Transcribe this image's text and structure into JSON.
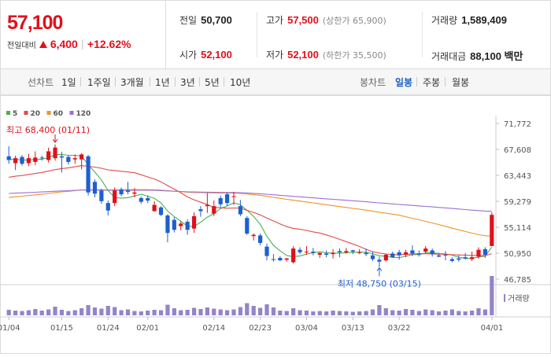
{
  "quote": {
    "price": "57,100",
    "change_label": "전일대비",
    "change": "6,400",
    "change_pct": "+12.62%",
    "prev_close_label": "전일",
    "prev_close": "50,700",
    "high_label": "고가",
    "high": "57,500",
    "upper_limit": "(상한가 65,900)",
    "volume_label": "거래량",
    "volume": "1,589,409",
    "open_label": "시가",
    "open": "52,100",
    "low_label": "저가",
    "low": "52,100",
    "lower_limit": "(하한가 35,500)",
    "amount_label": "거래대금",
    "amount": "88,100 백만"
  },
  "toolbar": {
    "line_label": "선차트",
    "periods": [
      "1일",
      "1주일",
      "3개월",
      "1년",
      "3년",
      "5년",
      "10년"
    ],
    "candle_label": "봉차트",
    "candles": [
      "일봉",
      "주봉",
      "월봉"
    ],
    "active_candle": "일봉"
  },
  "colors": {
    "up": "#e0101c",
    "down": "#1e5fd0",
    "ma5": "#4caf50",
    "ma20": "#e24a4a",
    "ma60": "#f0922b",
    "ma120": "#9a6fd6",
    "volume": "#9484c8"
  },
  "chart_data": {
    "type": "candlestick",
    "legend": [
      {
        "name": "5",
        "color": "#4caf50"
      },
      {
        "name": "20",
        "color": "#e24a4a"
      },
      {
        "name": "60",
        "color": "#f0922b"
      },
      {
        "name": "120",
        "color": "#9a6fd6"
      }
    ],
    "y_ticks": [
      "71,772",
      "67,608",
      "63,443",
      "59,279",
      "55,114",
      "50,950",
      "46,785"
    ],
    "ylim": [
      46785,
      71772
    ],
    "x_ticks": [
      "01/04",
      "01/15",
      "01/24",
      "02/01",
      "02/14",
      "02/23",
      "03/04",
      "03/13",
      "03/22",
      "04/01"
    ],
    "high_annotation": "최고 68,400 (01/11)",
    "low_annotation": "최저 48,750 (03/15)",
    "volume_label": "거래량",
    "candles": [
      {
        "o": 66500,
        "h": 68100,
        "l": 65300,
        "c": 65900
      },
      {
        "o": 65400,
        "h": 66600,
        "l": 64300,
        "c": 66200
      },
      {
        "o": 66400,
        "h": 66700,
        "l": 65000,
        "c": 65300
      },
      {
        "o": 65400,
        "h": 66900,
        "l": 64900,
        "c": 66200
      },
      {
        "o": 65600,
        "h": 67300,
        "l": 65100,
        "c": 66300
      },
      {
        "o": 66300,
        "h": 66600,
        "l": 65800,
        "c": 66200
      },
      {
        "o": 65900,
        "h": 67900,
        "l": 65500,
        "c": 67300
      },
      {
        "o": 66200,
        "h": 68400,
        "l": 65800,
        "c": 67900
      },
      {
        "o": 66500,
        "h": 67200,
        "l": 63900,
        "c": 66300
      },
      {
        "o": 66400,
        "h": 66700,
        "l": 65200,
        "c": 65600
      },
      {
        "o": 66000,
        "h": 66800,
        "l": 65300,
        "c": 66200
      },
      {
        "o": 66000,
        "h": 67000,
        "l": 64400,
        "c": 66800
      },
      {
        "o": 66500,
        "h": 66700,
        "l": 60200,
        "c": 60700
      },
      {
        "o": 62400,
        "h": 62800,
        "l": 59900,
        "c": 60500
      },
      {
        "o": 61000,
        "h": 61300,
        "l": 58900,
        "c": 59300
      },
      {
        "o": 59000,
        "h": 59400,
        "l": 57000,
        "c": 57800
      },
      {
        "o": 59000,
        "h": 61500,
        "l": 58500,
        "c": 61000
      },
      {
        "o": 61200,
        "h": 61500,
        "l": 60100,
        "c": 60400
      },
      {
        "o": 61000,
        "h": 62400,
        "l": 60400,
        "c": 60800
      },
      {
        "o": 60500,
        "h": 61400,
        "l": 59900,
        "c": 60700
      },
      {
        "o": 59800,
        "h": 60000,
        "l": 58900,
        "c": 59200
      },
      {
        "o": 59800,
        "h": 60200,
        "l": 59000,
        "c": 59400
      },
      {
        "o": 57700,
        "h": 59300,
        "l": 57600,
        "c": 58700
      },
      {
        "o": 58300,
        "h": 58500,
        "l": 56900,
        "c": 57100
      },
      {
        "o": 57000,
        "h": 57200,
        "l": 52700,
        "c": 54200
      },
      {
        "o": 56300,
        "h": 56700,
        "l": 54300,
        "c": 54700
      },
      {
        "o": 55300,
        "h": 56100,
        "l": 54600,
        "c": 55700
      },
      {
        "o": 56000,
        "h": 56400,
        "l": 53900,
        "c": 54700
      },
      {
        "o": 54900,
        "h": 57500,
        "l": 54200,
        "c": 56900
      },
      {
        "o": 58000,
        "h": 58500,
        "l": 56800,
        "c": 57700
      },
      {
        "o": 58500,
        "h": 60600,
        "l": 57400,
        "c": 58700
      },
      {
        "o": 57300,
        "h": 59400,
        "l": 56900,
        "c": 58500
      },
      {
        "o": 59800,
        "h": 60200,
        "l": 58300,
        "c": 58800
      },
      {
        "o": 60400,
        "h": 60700,
        "l": 58500,
        "c": 59000
      },
      {
        "o": 60100,
        "h": 60800,
        "l": 58700,
        "c": 60100
      },
      {
        "o": 58500,
        "h": 59500,
        "l": 56900,
        "c": 57200
      },
      {
        "o": 56600,
        "h": 56900,
        "l": 53900,
        "c": 54100
      },
      {
        "o": 53700,
        "h": 54100,
        "l": 53000,
        "c": 53900
      },
      {
        "o": 53800,
        "h": 54100,
        "l": 52200,
        "c": 52600
      },
      {
        "o": 52000,
        "h": 52500,
        "l": 49800,
        "c": 50500
      },
      {
        "o": 50000,
        "h": 50800,
        "l": 49600,
        "c": 49900
      },
      {
        "o": 50200,
        "h": 50500,
        "l": 49700,
        "c": 49800
      },
      {
        "o": 49900,
        "h": 50200,
        "l": 49600,
        "c": 50100
      },
      {
        "o": 49500,
        "h": 52100,
        "l": 49300,
        "c": 51700
      },
      {
        "o": 51500,
        "h": 51900,
        "l": 50800,
        "c": 51100
      },
      {
        "o": 51100,
        "h": 52100,
        "l": 50700,
        "c": 51200
      },
      {
        "o": 51200,
        "h": 51800,
        "l": 50600,
        "c": 51000
      },
      {
        "o": 50700,
        "h": 51100,
        "l": 50200,
        "c": 51000
      },
      {
        "o": 50900,
        "h": 51400,
        "l": 50300,
        "c": 50700
      },
      {
        "o": 50800,
        "h": 51600,
        "l": 50100,
        "c": 51000
      },
      {
        "o": 51300,
        "h": 51700,
        "l": 50300,
        "c": 51100
      },
      {
        "o": 51100,
        "h": 51800,
        "l": 50900,
        "c": 51300
      },
      {
        "o": 51400,
        "h": 51500,
        "l": 50800,
        "c": 51200
      },
      {
        "o": 51100,
        "h": 51600,
        "l": 50800,
        "c": 51100
      },
      {
        "o": 51000,
        "h": 51700,
        "l": 50500,
        "c": 50800
      },
      {
        "o": 50600,
        "h": 51200,
        "l": 49700,
        "c": 50000
      },
      {
        "o": 49900,
        "h": 50400,
        "l": 48750,
        "c": 49600
      },
      {
        "o": 49800,
        "h": 50900,
        "l": 49600,
        "c": 50700
      },
      {
        "o": 50900,
        "h": 51200,
        "l": 50200,
        "c": 50300
      },
      {
        "o": 51100,
        "h": 51500,
        "l": 49900,
        "c": 50600
      },
      {
        "o": 50700,
        "h": 51500,
        "l": 50300,
        "c": 51100
      },
      {
        "o": 51400,
        "h": 52200,
        "l": 50500,
        "c": 50900
      },
      {
        "o": 50900,
        "h": 51400,
        "l": 50400,
        "c": 50700
      },
      {
        "o": 51200,
        "h": 52100,
        "l": 50900,
        "c": 51700
      },
      {
        "o": 51400,
        "h": 51700,
        "l": 50400,
        "c": 50800
      },
      {
        "o": 50600,
        "h": 51000,
        "l": 50300,
        "c": 50400
      },
      {
        "o": 50700,
        "h": 51300,
        "l": 49800,
        "c": 50600
      },
      {
        "o": 50000,
        "h": 50300,
        "l": 49500,
        "c": 49700
      },
      {
        "o": 50100,
        "h": 50600,
        "l": 49600,
        "c": 49900
      },
      {
        "o": 50300,
        "h": 51000,
        "l": 49900,
        "c": 50100
      },
      {
        "o": 50000,
        "h": 51200,
        "l": 49700,
        "c": 50300
      },
      {
        "o": 50400,
        "h": 51900,
        "l": 50100,
        "c": 51500
      },
      {
        "o": 51600,
        "h": 51900,
        "l": 50200,
        "c": 50700
      },
      {
        "o": 52100,
        "h": 57500,
        "l": 52100,
        "c": 57100
      }
    ],
    "volumes": [
      0.14,
      0.12,
      0.11,
      0.13,
      0.16,
      0.12,
      0.15,
      0.22,
      0.14,
      0.11,
      0.13,
      0.18,
      0.26,
      0.2,
      0.17,
      0.24,
      0.21,
      0.13,
      0.15,
      0.11,
      0.1,
      0.12,
      0.14,
      0.13,
      0.27,
      0.18,
      0.13,
      0.14,
      0.19,
      0.16,
      0.2,
      0.17,
      0.15,
      0.13,
      0.15,
      0.21,
      0.31,
      0.24,
      0.19,
      0.28,
      0.2,
      0.12,
      0.11,
      0.18,
      0.13,
      0.12,
      0.1,
      0.11,
      0.1,
      0.12,
      0.11,
      0.1,
      0.09,
      0.1,
      0.11,
      0.15,
      0.26,
      0.18,
      0.13,
      0.12,
      0.16,
      0.14,
      0.11,
      0.15,
      0.13,
      0.1,
      0.12,
      0.15,
      0.11,
      0.1,
      0.12,
      0.18,
      0.15,
      1.0
    ]
  }
}
